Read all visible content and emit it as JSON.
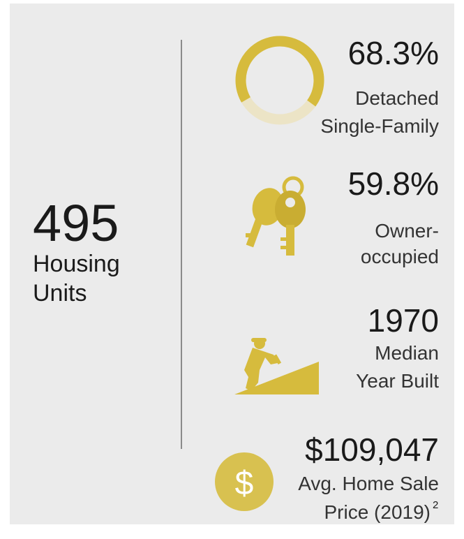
{
  "summary": {
    "value": "495",
    "label_lines": [
      "Housing",
      "Units"
    ]
  },
  "stats": [
    {
      "value": 68.3,
      "value_label": "68.3%",
      "label_lines": [
        "Detached",
        "Single-Family"
      ]
    },
    {
      "value_label": "59.8%",
      "label_lines": [
        "Owner-",
        "occupied"
      ]
    },
    {
      "value_label": "1970",
      "label_lines": [
        "Median",
        "Year Built"
      ]
    },
    {
      "value_label": "$109,047",
      "label_lines": [
        "Avg. Home Sale",
        "Price (2019)"
      ],
      "footnote": "2",
      "icon_symbol": "$"
    }
  ]
}
